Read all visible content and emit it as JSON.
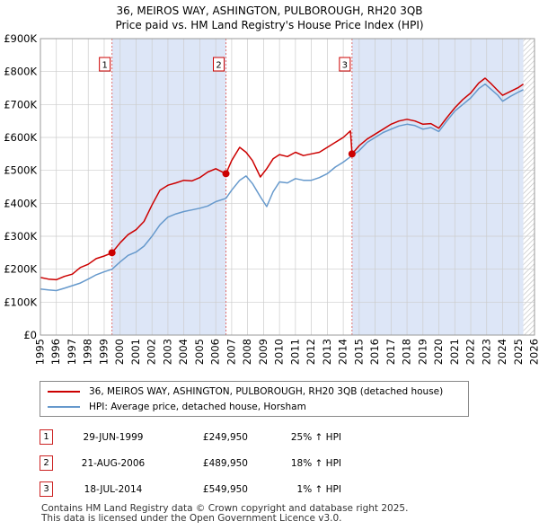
{
  "title_line1": "36, MEIROS WAY, ASHINGTON, PULBOROUGH, RH20 3QB",
  "title_line2": "Price paid vs. HM Land Registry's House Price Index (HPI)",
  "legend": {
    "property_label": "36, MEIROS WAY, ASHINGTON, PULBOROUGH, RH20 3QB (detached house)",
    "hpi_label": "HPI: Average price, detached house, Horsham"
  },
  "sales": [
    {
      "num": "1",
      "date": "29-JUN-1999",
      "price": "£249,950",
      "hpi": "25% ↑ HPI"
    },
    {
      "num": "2",
      "date": "21-AUG-2006",
      "price": "£489,950",
      "hpi": "18% ↑ HPI"
    },
    {
      "num": "3",
      "date": "18-JUL-2014",
      "price": "£549,950",
      "hpi": "1% ↑ HPI"
    }
  ],
  "footer_line1": "Contains HM Land Registry data © Crown copyright and database right 2025.",
  "footer_line2": "This data is licensed under the Open Government Licence v3.0.",
  "colors": {
    "property": "#cc0000",
    "hpi": "#6699cc",
    "shade": "#dde6f7",
    "vline": "#e07070",
    "hatch": "#bbbbbb"
  },
  "chart_data": {
    "type": "line",
    "xlim": [
      1995,
      2026
    ],
    "ylim": [
      0,
      900000
    ],
    "x_ticks": [
      "1995",
      "1996",
      "1997",
      "1998",
      "1999",
      "2000",
      "2001",
      "2002",
      "2003",
      "2004",
      "2005",
      "2006",
      "2007",
      "2008",
      "2009",
      "2010",
      "2011",
      "2012",
      "2013",
      "2014",
      "2015",
      "2016",
      "2017",
      "2018",
      "2019",
      "2020",
      "2021",
      "2022",
      "2023",
      "2024",
      "2025",
      "2026"
    ],
    "y_ticks": [
      {
        "value": 0,
        "label": "£0"
      },
      {
        "value": 100000,
        "label": "£100K"
      },
      {
        "value": 200000,
        "label": "£200K"
      },
      {
        "value": 300000,
        "label": "£300K"
      },
      {
        "value": 400000,
        "label": "£400K"
      },
      {
        "value": 500000,
        "label": "£500K"
      },
      {
        "value": 600000,
        "label": "£600K"
      },
      {
        "value": 700000,
        "label": "£700K"
      },
      {
        "value": 800000,
        "label": "£800K"
      },
      {
        "value": 900000,
        "label": "£900K"
      }
    ],
    "shaded_regions": [
      [
        1999.49,
        2006.64
      ],
      [
        2014.55,
        2025.3
      ]
    ],
    "hatched_region": [
      2025.3,
      2026
    ],
    "markers": [
      {
        "label": "1",
        "x": 1999.49,
        "y": 249950
      },
      {
        "label": "2",
        "x": 2006.64,
        "y": 489950
      },
      {
        "label": "3",
        "x": 2014.55,
        "y": 549950
      }
    ],
    "series": [
      {
        "name": "36, MEIROS WAY, ASHINGTON, PULBOROUGH, RH20 3QB (detached house)",
        "x": [
          1995.0,
          1995.5,
          1996.0,
          1996.5,
          1997.0,
          1997.5,
          1998.0,
          1998.5,
          1999.0,
          1999.49,
          2000.0,
          2000.5,
          2001.0,
          2001.5,
          2002.0,
          2002.5,
          2003.0,
          2003.5,
          2004.0,
          2004.5,
          2005.0,
          2005.5,
          2006.0,
          2006.64,
          2007.0,
          2007.5,
          2007.9,
          2008.3,
          2008.8,
          2009.2,
          2009.6,
          2010.0,
          2010.5,
          2011.0,
          2011.5,
          2012.0,
          2012.5,
          2013.0,
          2013.5,
          2014.0,
          2014.45,
          2014.55,
          2015.0,
          2015.5,
          2016.0,
          2016.5,
          2017.0,
          2017.5,
          2018.0,
          2018.5,
          2019.0,
          2019.5,
          2020.0,
          2020.5,
          2021.0,
          2021.5,
          2022.0,
          2022.5,
          2022.9,
          2023.3,
          2023.7,
          2024.0,
          2024.5,
          2025.0,
          2025.3
        ],
        "y": [
          175000,
          170000,
          168000,
          178000,
          185000,
          205000,
          215000,
          232000,
          240000,
          249950,
          280000,
          305000,
          320000,
          345000,
          395000,
          440000,
          455000,
          462000,
          470000,
          468000,
          478000,
          495000,
          505000,
          489950,
          530000,
          570000,
          555000,
          530000,
          480000,
          505000,
          535000,
          548000,
          542000,
          555000,
          545000,
          550000,
          555000,
          570000,
          585000,
          600000,
          620000,
          549950,
          575000,
          595000,
          610000,
          625000,
          640000,
          650000,
          655000,
          650000,
          640000,
          642000,
          628000,
          660000,
          690000,
          715000,
          735000,
          765000,
          780000,
          762000,
          742000,
          728000,
          740000,
          752000,
          762000
        ]
      },
      {
        "name": "HPI: Average price, detached house, Horsham",
        "x": [
          1995.0,
          1995.5,
          1996.0,
          1996.5,
          1997.0,
          1997.5,
          1998.0,
          1998.5,
          1999.0,
          1999.49,
          2000.0,
          2000.5,
          2001.0,
          2001.5,
          2002.0,
          2002.5,
          2003.0,
          2003.5,
          2004.0,
          2004.5,
          2005.0,
          2005.5,
          2006.0,
          2006.64,
          2007.0,
          2007.5,
          2007.9,
          2008.3,
          2008.8,
          2009.2,
          2009.6,
          2010.0,
          2010.5,
          2011.0,
          2011.5,
          2012.0,
          2012.5,
          2013.0,
          2013.5,
          2014.0,
          2014.55,
          2015.0,
          2015.5,
          2016.0,
          2016.5,
          2017.0,
          2017.5,
          2018.0,
          2018.5,
          2019.0,
          2019.5,
          2020.0,
          2020.5,
          2021.0,
          2021.5,
          2022.0,
          2022.5,
          2022.9,
          2023.3,
          2023.7,
          2024.0,
          2024.5,
          2025.0,
          2025.3
        ],
        "y": [
          140000,
          137000,
          135000,
          142000,
          150000,
          158000,
          170000,
          183000,
          192000,
          200000,
          222000,
          242000,
          252000,
          270000,
          300000,
          335000,
          358000,
          368000,
          375000,
          380000,
          385000,
          392000,
          405000,
          415000,
          440000,
          470000,
          483000,
          460000,
          420000,
          390000,
          435000,
          465000,
          462000,
          475000,
          470000,
          470000,
          478000,
          490000,
          510000,
          525000,
          545000,
          560000,
          585000,
          600000,
          615000,
          625000,
          635000,
          640000,
          636000,
          625000,
          630000,
          618000,
          650000,
          680000,
          700000,
          720000,
          748000,
          762000,
          745000,
          728000,
          710000,
          725000,
          738000,
          745000
        ]
      }
    ]
  }
}
